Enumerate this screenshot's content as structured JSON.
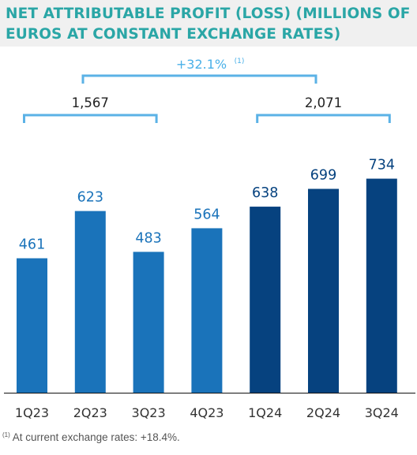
{
  "title": "NET ATTRIBUTABLE PROFIT (LOSS) (MILLIONS OF EUROS AT CONSTANT EXCHANGE RATES)",
  "footnote": {
    "marker": "(1)",
    "text": " At current exchange rates: +18.4%."
  },
  "colors": {
    "title": "#2aa6a6",
    "bar_2023": "#1a73ba",
    "bar_2024": "#06427f",
    "bracket": "#5bb2e6",
    "growth_label": "#49b0e8",
    "value_2023": "#1a73ba",
    "value_2024": "#06427f",
    "axis": "#111111",
    "tick": "#333333"
  },
  "chart_data": {
    "type": "bar",
    "categories": [
      "1Q23",
      "2Q23",
      "3Q23",
      "4Q23",
      "1Q24",
      "2Q24",
      "3Q24"
    ],
    "values": [
      461,
      623,
      483,
      564,
      638,
      699,
      734
    ],
    "ylim": [
      0,
      800
    ],
    "bar_groups": [
      "2023",
      "2023",
      "2023",
      "2023",
      "2024",
      "2024",
      "2024"
    ],
    "brackets": [
      {
        "label": "1,567",
        "from": 0,
        "to": 2
      },
      {
        "label": "2,071",
        "from": 4,
        "to": 6
      }
    ],
    "growth": {
      "label": "+32.1%",
      "superscript": "(1)"
    },
    "grid": false,
    "legend": "none"
  }
}
